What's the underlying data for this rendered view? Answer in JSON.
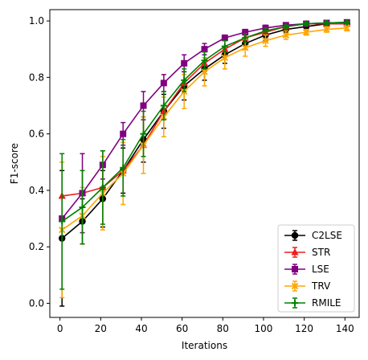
{
  "chart_data": {
    "type": "line",
    "xlabel": "Iterations",
    "ylabel": "F1-score",
    "xlim": [
      -5,
      147
    ],
    "ylim": [
      -0.05,
      1.04
    ],
    "xticks": [
      0,
      20,
      40,
      60,
      80,
      100,
      120,
      140
    ],
    "yticks": [
      0.0,
      0.2,
      0.4,
      0.6,
      0.8,
      1.0
    ],
    "xtick_labels": [
      "0",
      "20",
      "40",
      "60",
      "80",
      "100",
      "120",
      "140"
    ],
    "ytick_labels": [
      "0.0",
      "0.2",
      "0.4",
      "0.6",
      "0.8",
      "1.0"
    ],
    "grid": false,
    "legend_position": "bottom-right",
    "x": [
      1,
      11,
      21,
      31,
      41,
      51,
      61,
      71,
      81,
      91,
      101,
      111,
      121,
      131,
      141
    ],
    "series": [
      {
        "name": "C2LSE",
        "color": "#000000",
        "marker": "circle",
        "values": [
          0.23,
          0.29,
          0.37,
          0.47,
          0.58,
          0.68,
          0.77,
          0.83,
          0.88,
          0.92,
          0.95,
          0.97,
          0.98,
          0.99,
          0.99
        ],
        "errors": [
          0.24,
          0.08,
          0.1,
          0.08,
          0.08,
          0.06,
          0.05,
          0.04,
          0.03,
          0.02,
          0.02,
          0.01,
          0.01,
          0.01,
          0.01
        ]
      },
      {
        "name": "STR",
        "color": "#ee1c1c",
        "marker": "triangle",
        "values": [
          0.38,
          0.39,
          0.41,
          0.47,
          0.56,
          0.68,
          0.78,
          0.85,
          0.9,
          0.94,
          0.96,
          0.98,
          0.99,
          0.99,
          0.99
        ],
        "errors": [
          0.0,
          0.0,
          0.0,
          0.0,
          0.0,
          0.0,
          0.0,
          0.0,
          0.0,
          0.0,
          0.0,
          0.0,
          0.0,
          0.0,
          0.0
        ]
      },
      {
        "name": "LSE",
        "color": "#800080",
        "marker": "square",
        "values": [
          0.3,
          0.39,
          0.49,
          0.6,
          0.7,
          0.78,
          0.85,
          0.9,
          0.94,
          0.96,
          0.975,
          0.985,
          0.99,
          0.993,
          0.995
        ],
        "errors": [
          0.0,
          0.14,
          0.05,
          0.04,
          0.05,
          0.03,
          0.03,
          0.02,
          0.01,
          0.01,
          0.01,
          0.005,
          0.005,
          0.005,
          0.005
        ]
      },
      {
        "name": "TRV",
        "color": "#ffa500",
        "marker": "x",
        "values": [
          0.26,
          0.31,
          0.39,
          0.46,
          0.56,
          0.66,
          0.75,
          0.82,
          0.87,
          0.905,
          0.93,
          0.95,
          0.96,
          0.97,
          0.975
        ],
        "errors": [
          0.24,
          0.1,
          0.13,
          0.11,
          0.1,
          0.07,
          0.06,
          0.05,
          0.04,
          0.03,
          0.02,
          0.015,
          0.01,
          0.01,
          0.01
        ]
      },
      {
        "name": "RMILE",
        "color": "#008000",
        "marker": "plus",
        "values": [
          0.29,
          0.34,
          0.41,
          0.48,
          0.6,
          0.7,
          0.79,
          0.86,
          0.91,
          0.94,
          0.965,
          0.98,
          0.99,
          0.993,
          0.995
        ],
        "errors": [
          0.24,
          0.13,
          0.13,
          0.1,
          0.08,
          0.05,
          0.04,
          0.03,
          0.02,
          0.015,
          0.01,
          0.005,
          0.005,
          0.005,
          0.005
        ]
      }
    ]
  }
}
